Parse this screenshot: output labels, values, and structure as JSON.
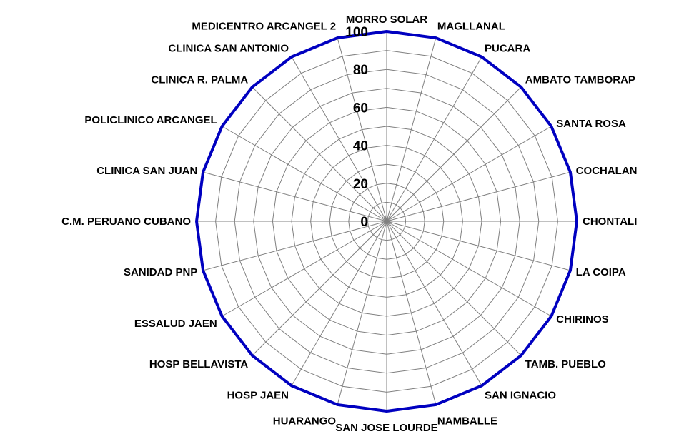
{
  "chart_data": {
    "type": "radar",
    "categories": [
      "MORRO SOLAR",
      "MAGLLANAL",
      "PUCARA",
      "AMBATO TAMBORAP",
      "SANTA ROSA",
      "COCHALAN",
      "CHONTALI",
      "LA COIPA",
      "CHIRINOS",
      "TAMB. PUEBLO",
      "SAN IGNACIO",
      "NAMBALLE",
      "SAN JOSE LOURDE",
      "HUARANGO",
      "HOSP JAEN",
      "HOSP BELLAVISTA",
      "ESSALUD JAEN",
      "SANIDAD PNP",
      "C.M. PERUANO CUBANO",
      "CLINICA SAN JUAN",
      "POLICLINICO ARCANGEL",
      "CLINICA R. PALMA",
      "CLINICA SAN ANTONIO",
      "MEDICENTRO ARCANGEL 2"
    ],
    "series": [
      {
        "color": "#0000C0",
        "values": [
          100,
          100,
          100,
          100,
          100,
          100,
          100,
          100,
          100,
          100,
          100,
          100,
          100,
          100,
          100,
          100,
          100,
          100,
          100,
          100,
          100,
          100,
          100,
          100
        ]
      }
    ],
    "radial_ticks": [
      "0",
      "20",
      "40",
      "60",
      "80",
      "100"
    ],
    "rlim": [
      0,
      100
    ],
    "grid": true,
    "legend": "none",
    "grid_color": "#808080"
  }
}
